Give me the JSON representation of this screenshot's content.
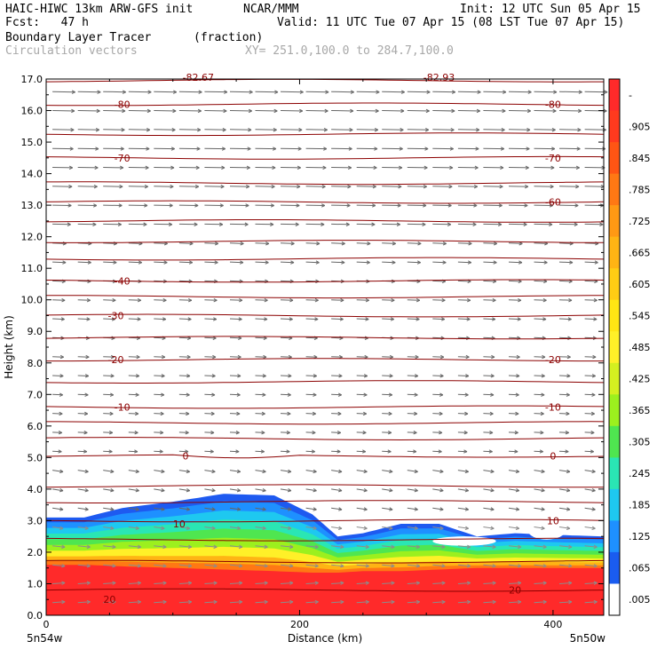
{
  "header": {
    "line1_left": "HAIC-HIWC 13km ARW-GFS init",
    "line1_mid": "NCAR/MMM",
    "line1_right": "Init: 12 UTC Sun 05 Apr 15",
    "line2_left": "Fcst:   47 h",
    "line2_right": "Valid: 11 UTC Tue 07 Apr 15 (08 LST Tue 07 Apr 15)",
    "line3_left": "Boundary Layer Tracer",
    "line3_units": "(fraction)",
    "line4_left": "Circulation vectors",
    "line4_xy": "XY= 251.0,100.0 to 284.7,100.0"
  },
  "chart_data": {
    "type": "heatmap",
    "xlabel": "Distance (km)",
    "ylabel": "Height (km)",
    "xlim": [
      0,
      440
    ],
    "ylim": [
      0,
      17
    ],
    "x_ticks": [
      "0",
      "200",
      "400"
    ],
    "x_tick_values": [
      0,
      200,
      400
    ],
    "y_ticks": [
      "0.0",
      "1.0",
      "2.0",
      "3.0",
      "4.0",
      "5.0",
      "6.0",
      "7.0",
      "8.0",
      "9.0",
      "10.0",
      "11.0",
      "12.0",
      "13.0",
      "14.0",
      "15.0",
      "16.0",
      "17.0"
    ],
    "x_end_labels": {
      "left": "5n54w",
      "right": "5n50w"
    },
    "colorbar": {
      "labels": [
        "-",
        ".905",
        ".845",
        ".785",
        ".725",
        ".665",
        ".605",
        ".545",
        ".485",
        ".425",
        ".365",
        ".305",
        ".245",
        ".185",
        ".125",
        ".065",
        ".005"
      ],
      "colors": [
        "#ff2a2a",
        "#ff3a1e",
        "#ff5514",
        "#ff7814",
        "#ff9914",
        "#ffb414",
        "#ffcc14",
        "#ffe614",
        "#fff028",
        "#d4f020",
        "#9cf01e",
        "#4fe650",
        "#2ae6b4",
        "#1ec8f0",
        "#1e90ff",
        "#1a5cf0",
        "#ffffff"
      ]
    },
    "boundaries_km": {
      "x": [
        0,
        30,
        60,
        100,
        140,
        180,
        210,
        230,
        250,
        280,
        310,
        340,
        370,
        400,
        440
      ],
      "tracer_top": [
        3.1,
        3.1,
        3.4,
        3.6,
        3.85,
        3.8,
        3.2,
        2.5,
        2.6,
        2.9,
        2.9,
        2.5,
        2.6,
        2.55,
        2.5
      ],
      "saturated_top": [
        1.6,
        1.6,
        1.55,
        1.5,
        1.45,
        1.4,
        1.35,
        1.35,
        1.4,
        1.4,
        1.45,
        1.5,
        1.5,
        1.5,
        1.5
      ]
    },
    "contours": {
      "name": "temperature",
      "levels": [
        -80,
        -70,
        -60,
        -40,
        -30,
        -20,
        -10,
        0,
        10,
        20
      ],
      "heights_km": {
        "-80": 16.2,
        "-70": 14.5,
        "-60": 13.1,
        "-40": 10.6,
        "-30": 9.5,
        "-20": 8.1,
        "-10": 6.6,
        "0": 5.05,
        "10": 3.0,
        "20": 0.8
      },
      "labels": [
        {
          "text": "-80",
          "x": 60,
          "h": 16.2
        },
        {
          "text": "-80",
          "x": 400,
          "h": 16.2
        },
        {
          "text": "-70",
          "x": 60,
          "h": 14.5
        },
        {
          "text": "-70",
          "x": 400,
          "h": 14.5
        },
        {
          "text": "-60",
          "x": 400,
          "h": 13.1
        },
        {
          "text": "-40",
          "x": 60,
          "h": 10.6
        },
        {
          "text": "-30",
          "x": 55,
          "h": 9.5
        },
        {
          "text": "-20",
          "x": 55,
          "h": 8.1
        },
        {
          "text": "-20",
          "x": 400,
          "h": 8.1
        },
        {
          "text": "-10",
          "x": 60,
          "h": 6.6
        },
        {
          "text": "-10",
          "x": 400,
          "h": 6.6
        },
        {
          "text": "0",
          "x": 110,
          "h": 5.05
        },
        {
          "text": "0",
          "x": 400,
          "h": 5.05
        },
        {
          "text": "10",
          "x": 105,
          "h": 2.9
        },
        {
          "text": "10",
          "x": 400,
          "h": 3.0
        },
        {
          "text": "20",
          "x": 50,
          "h": 0.5
        },
        {
          "text": "20",
          "x": 370,
          "h": 0.8
        },
        {
          "text": "-82.67",
          "x": 120,
          "h": 17.05
        },
        {
          "text": "-82.93",
          "x": 310,
          "h": 17.05
        }
      ]
    },
    "vectors": {
      "description_levels_km": [
        0.4,
        1.0,
        1.6,
        2.2,
        2.8,
        3.4,
        4.0
      ]
    }
  }
}
